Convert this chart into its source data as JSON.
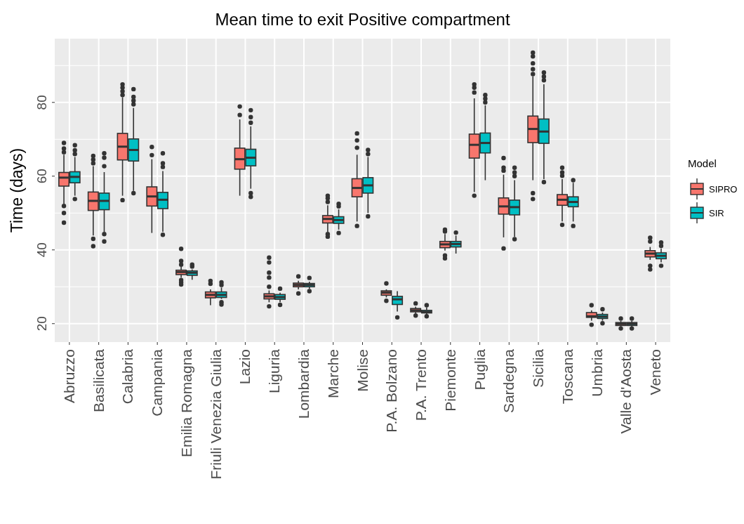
{
  "chart_data": {
    "type": "box",
    "title": "Mean time to exit Positive compartment",
    "ylabel": "Time (days)",
    "legend_title": "Model",
    "legend": "right",
    "grid": true,
    "categories": [
      "Abruzzo",
      "Basilicata",
      "Calabria",
      "Campania",
      "Emilia Romagna",
      "Friuli Venezia Giulia",
      "Lazio",
      "Liguria",
      "Lombardia",
      "Marche",
      "Molise",
      "P.A. Bolzano",
      "P.A. Trento",
      "Piemonte",
      "Puglia",
      "Sardegna",
      "Sicilia",
      "Toscana",
      "Umbria",
      "Valle d'Aosta",
      "Veneto"
    ],
    "ylim": [
      15,
      97.3
    ],
    "yticks": [
      20,
      40,
      60,
      80
    ],
    "series": [
      {
        "name": "SIPRO",
        "color": "#f8766d",
        "boxes": [
          {
            "low": 52.5,
            "q1": 57.3,
            "median": 59.6,
            "q3": 61.0,
            "high": 65.8,
            "outliers": [
              66.5,
              67.5,
              69.0,
              51.9,
              50.0,
              47.4
            ]
          },
          {
            "low": 43.9,
            "q1": 50.7,
            "median": 53.3,
            "q3": 55.7,
            "high": 62.7,
            "outliers": [
              63.5,
              64.5,
              65.5,
              43.0,
              41.0
            ]
          },
          {
            "low": 54.7,
            "q1": 64.4,
            "median": 68.0,
            "q3": 71.6,
            "high": 81.4,
            "outliers": [
              82.0,
              83.0,
              84.0,
              84.9,
              53.5
            ]
          },
          {
            "low": 44.6,
            "q1": 51.9,
            "median": 54.5,
            "q3": 57.1,
            "high": 64.6,
            "outliers": [
              65.7,
              67.9
            ]
          },
          {
            "low": 32.5,
            "q1": 33.3,
            "median": 34.0,
            "q3": 34.5,
            "high": 35.4,
            "outliers": [
              36.0,
              37.0,
              40.3,
              31.8,
              31.2,
              30.6
            ]
          },
          {
            "low": 25.0,
            "q1": 27.0,
            "median": 27.8,
            "q3": 28.6,
            "high": 29.3,
            "outliers": [
              30.8,
              31.6
            ]
          },
          {
            "low": 54.7,
            "q1": 61.9,
            "median": 64.6,
            "q3": 67.6,
            "high": 75.4,
            "outliers": [
              76.6,
              78.9
            ]
          },
          {
            "low": 25.8,
            "q1": 26.7,
            "median": 27.4,
            "q3": 28.1,
            "high": 29.0,
            "outliers": [
              30.0,
              32.5,
              33.8,
              36.6,
              37.9,
              24.7
            ]
          },
          {
            "low": 29.3,
            "q1": 30.0,
            "median": 30.5,
            "q3": 31.0,
            "high": 31.6,
            "outliers": [
              32.8,
              28.2
            ]
          },
          {
            "low": 44.9,
            "q1": 47.3,
            "median": 48.4,
            "q3": 49.3,
            "high": 52.1,
            "outliers": [
              53.0,
              54.0,
              54.7,
              44.3,
              43.6
            ]
          },
          {
            "low": 47.7,
            "q1": 54.4,
            "median": 56.8,
            "q3": 59.3,
            "high": 65.8,
            "outliers": [
              67.7,
              69.7,
              71.6,
              46.5
            ]
          },
          {
            "low": 27.1,
            "q1": 27.7,
            "median": 28.4,
            "q3": 28.9,
            "high": 29.3,
            "outliers": [
              30.9,
              26.2
            ]
          },
          {
            "low": 22.7,
            "q1": 23.2,
            "median": 23.6,
            "q3": 24.1,
            "high": 24.6,
            "outliers": [
              25.5,
              22.2
            ]
          },
          {
            "low": 39.8,
            "q1": 40.6,
            "median": 41.5,
            "q3": 42.3,
            "high": 44.3,
            "outliers": [
              45.0,
              45.5,
              38.5,
              37.7
            ]
          },
          {
            "low": 55.7,
            "q1": 64.9,
            "median": 68.5,
            "q3": 71.4,
            "high": 81.1,
            "outliers": [
              82.7,
              84.0,
              84.9,
              54.7
            ]
          },
          {
            "low": 43.4,
            "q1": 49.7,
            "median": 51.8,
            "q3": 54.1,
            "high": 60.4,
            "outliers": [
              61.5,
              62.3,
              64.9,
              40.4
            ]
          },
          {
            "low": 58.9,
            "q1": 69.1,
            "median": 72.8,
            "q3": 76.3,
            "high": 87.1,
            "outliers": [
              87.7,
              89.0,
              90.6,
              92.5,
              93.5,
              55.4,
              53.8
            ]
          },
          {
            "low": 47.7,
            "q1": 52.1,
            "median": 53.6,
            "q3": 55.0,
            "high": 59.2,
            "outliers": [
              60.1,
              61.0,
              62.3,
              46.8
            ]
          },
          {
            "low": 20.8,
            "q1": 21.7,
            "median": 22.0,
            "q3": 23.0,
            "high": 23.6,
            "outliers": [
              25.0,
              19.7
            ]
          },
          {
            "low": 19.2,
            "q1": 19.5,
            "median": 19.9,
            "q3": 20.3,
            "high": 20.8,
            "outliers": [
              21.4,
              18.7
            ]
          },
          {
            "low": 37.3,
            "q1": 38.1,
            "median": 39.0,
            "q3": 39.8,
            "high": 40.8,
            "outliers": [
              42.3,
              43.3,
              35.7,
              34.7
            ]
          }
        ]
      },
      {
        "name": "SIR",
        "color": "#00bfc4",
        "boxes": [
          {
            "low": 54.7,
            "q1": 58.2,
            "median": 59.8,
            "q3": 61.2,
            "high": 65.2,
            "outliers": [
              66.0,
              67.0,
              68.4,
              53.8
            ]
          },
          {
            "low": 44.9,
            "q1": 50.9,
            "median": 53.3,
            "q3": 55.4,
            "high": 61.1,
            "outliers": [
              62.7,
              65.0,
              66.2,
              44.3,
              42.3
            ]
          },
          {
            "low": 56.0,
            "q1": 64.1,
            "median": 67.1,
            "q3": 70.1,
            "high": 78.5,
            "outliers": [
              79.5,
              80.5,
              81.5,
              83.6,
              55.4
            ]
          },
          {
            "low": 44.9,
            "q1": 51.2,
            "median": 53.6,
            "q3": 55.6,
            "high": 61.4,
            "outliers": [
              62.5,
              63.5,
              66.2,
              44.1
            ]
          },
          {
            "low": 31.9,
            "q1": 33.1,
            "median": 33.8,
            "q3": 34.3,
            "high": 34.7,
            "outliers": [
              35.5,
              36.0
            ]
          },
          {
            "low": 26.7,
            "q1": 27.1,
            "median": 27.8,
            "q3": 28.6,
            "high": 29.8,
            "outliers": [
              30.5,
              31.2,
              25.8,
              25.2
            ]
          },
          {
            "low": 56.6,
            "q1": 62.8,
            "median": 65.0,
            "q3": 67.3,
            "high": 73.5,
            "outliers": [
              74.5,
              76.0,
              77.9,
              55.4,
              54.4
            ]
          },
          {
            "low": 25.8,
            "q1": 26.6,
            "median": 27.2,
            "q3": 27.9,
            "high": 28.4,
            "outliers": [
              29.5,
              25.1
            ]
          },
          {
            "low": 29.5,
            "q1": 30.0,
            "median": 30.5,
            "q3": 30.9,
            "high": 31.4,
            "outliers": [
              32.4,
              28.8
            ]
          },
          {
            "low": 45.5,
            "q1": 47.2,
            "median": 48.1,
            "q3": 49.0,
            "high": 51.0,
            "outliers": [
              51.8,
              52.5,
              44.6
            ]
          },
          {
            "low": 50.0,
            "q1": 55.4,
            "median": 57.5,
            "q3": 59.6,
            "high": 65.2,
            "outliers": [
              66.0,
              67.1,
              49.1
            ]
          },
          {
            "low": 23.3,
            "q1": 25.2,
            "median": 26.6,
            "q3": 27.4,
            "high": 28.8,
            "outliers": [
              21.7
            ]
          },
          {
            "low": 22.3,
            "q1": 22.9,
            "median": 23.2,
            "q3": 23.6,
            "high": 24.4,
            "outliers": [
              25.0,
              22.0
            ]
          },
          {
            "low": 39.0,
            "q1": 40.8,
            "median": 41.6,
            "q3": 42.3,
            "high": 43.9,
            "outliers": [
              44.7
            ]
          },
          {
            "low": 58.9,
            "q1": 66.3,
            "median": 69.0,
            "q3": 71.7,
            "high": 79.2,
            "outliers": [
              80.0,
              81.0,
              82.0
            ]
          },
          {
            "low": 43.6,
            "q1": 49.5,
            "median": 51.6,
            "q3": 53.5,
            "high": 58.9,
            "outliers": [
              60.0,
              61.0,
              62.3,
              42.9
            ]
          },
          {
            "low": 59.2,
            "q1": 68.9,
            "median": 72.1,
            "q3": 75.5,
            "high": 84.9,
            "outliers": [
              86.0,
              87.0,
              88.1,
              58.4
            ]
          },
          {
            "low": 47.7,
            "q1": 51.7,
            "median": 53.0,
            "q3": 54.4,
            "high": 58.2,
            "outliers": [
              58.9,
              46.5
            ]
          },
          {
            "low": 20.8,
            "q1": 21.4,
            "median": 21.9,
            "q3": 22.5,
            "high": 23.0,
            "outliers": [
              23.9,
              20.1
            ]
          },
          {
            "low": 19.2,
            "q1": 19.5,
            "median": 19.9,
            "q3": 20.3,
            "high": 20.8,
            "outliers": [
              21.4,
              18.7
            ]
          },
          {
            "low": 36.6,
            "q1": 37.6,
            "median": 38.4,
            "q3": 39.2,
            "high": 40.4,
            "outliers": [
              41.1,
              42.0,
              35.7
            ]
          }
        ]
      }
    ]
  }
}
